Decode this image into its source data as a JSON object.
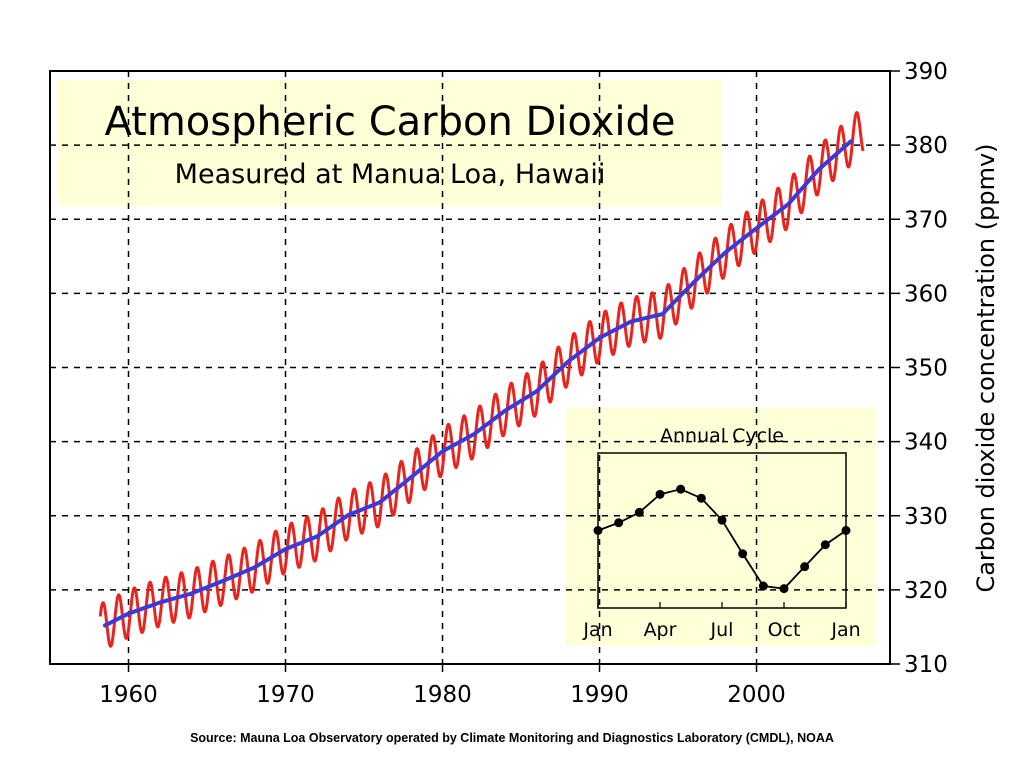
{
  "source_note": "Source: Mauna Loa Observatory operated by Climate Monitoring and Diagnostics Laboratory (CMDL), NOAA",
  "colors": {
    "monthly_line": "#e8241c",
    "trend_line": "#3a3adb",
    "title_box": "#ffffd8",
    "inset_box": "#ffffd8",
    "grid": "#000000"
  },
  "chart_data": [
    {
      "type": "line",
      "title": "Atmospheric Carbon Dioxide",
      "subtitle": "Measured at Manua Loa, Hawaii",
      "xlabel": "",
      "ylabel": "Carbon dioxide concentration (ppmv)",
      "xlim": [
        1955,
        2008.5
      ],
      "ylim": [
        310,
        390
      ],
      "x_ticks": [
        1960,
        1970,
        1980,
        1990,
        2000
      ],
      "y_ticks": [
        310,
        320,
        330,
        340,
        350,
        360,
        370,
        380,
        390
      ],
      "y_axis_side": "right",
      "grid": true,
      "grid_style": "dashed",
      "monthly_model": {
        "x_start": 1958.2,
        "x_end": 2006.8,
        "seasonal_amplitude": 3.2,
        "seasonal_peak_month": "May"
      },
      "series": [
        {
          "role": "trend",
          "x": [
            1958.5,
            1960,
            1962,
            1964,
            1966,
            1968,
            1970,
            1972,
            1974,
            1976,
            1978,
            1980,
            1982,
            1984,
            1986,
            1988,
            1990,
            1992,
            1994,
            1996,
            1998,
            2000,
            2002,
            2004,
            2006
          ],
          "values": [
            315.2,
            316.8,
            318.3,
            319.5,
            321.2,
            323.0,
            325.5,
            327.2,
            330.1,
            331.8,
            335.2,
            338.7,
            341.0,
            344.2,
            346.8,
            350.8,
            354.0,
            356.2,
            357.2,
            361.5,
            365.5,
            368.8,
            372.0,
            376.8,
            380.5
          ]
        }
      ]
    },
    {
      "type": "line",
      "title": "Annual Cycle",
      "categories": [
        "Jan",
        "",
        "",
        "Apr",
        "",
        "",
        "Jul",
        "",
        "",
        "Oct",
        "",
        "",
        "Jan"
      ],
      "x_tick_labels": [
        "Jan",
        "Apr",
        "Jul",
        "Oct",
        "Jan"
      ],
      "values": [
        0.0,
        0.6,
        1.4,
        2.8,
        3.2,
        2.5,
        0.8,
        -1.8,
        -4.3,
        -4.5,
        -2.8,
        -1.1,
        0.0
      ],
      "ylim": [
        -6,
        6
      ],
      "markers": true
    }
  ]
}
